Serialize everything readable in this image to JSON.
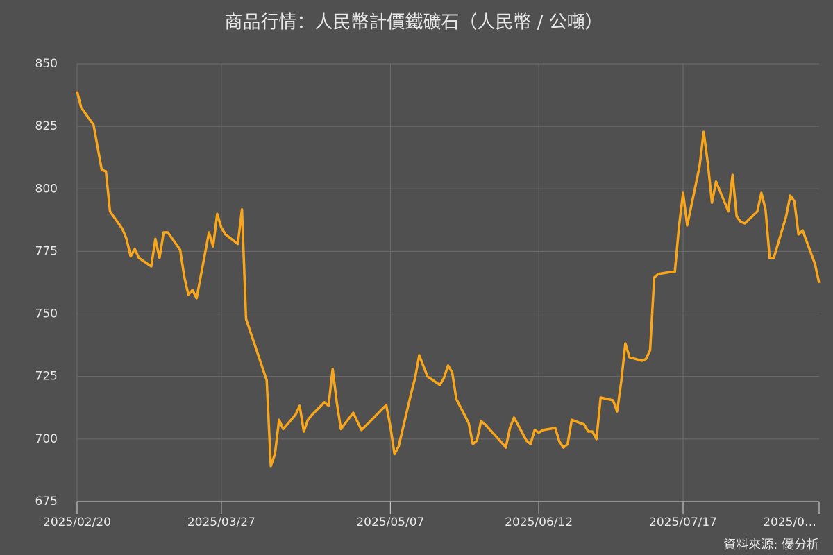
{
  "chart_data": {
    "type": "line",
    "title": "商品行情：人民幣計價鐵礦石（人民幣 / 公噸）",
    "source": "資料來源: 優分析",
    "x": [
      "2025/02/20",
      "2025/02/21",
      "2025/02/24",
      "2025/02/26",
      "2025/02/27",
      "2025/02/28",
      "2025/03/03",
      "2025/03/04",
      "2025/03/05",
      "2025/03/06",
      "2025/03/07",
      "2025/03/10",
      "2025/03/11",
      "2025/03/12",
      "2025/03/13",
      "2025/03/14",
      "2025/03/17",
      "2025/03/18",
      "2025/03/19",
      "2025/03/20",
      "2025/03/21",
      "2025/03/24",
      "2025/03/25",
      "2025/03/26",
      "2025/03/27",
      "2025/03/28",
      "2025/03/31",
      "2025/04/01",
      "2025/04/02",
      "2025/04/07",
      "2025/04/08",
      "2025/04/09",
      "2025/04/10",
      "2025/04/11",
      "2025/04/14",
      "2025/04/15",
      "2025/04/16",
      "2025/04/17",
      "2025/04/18",
      "2025/04/21",
      "2025/04/22",
      "2025/04/23",
      "2025/04/24",
      "2025/04/25",
      "2025/04/28",
      "2025/04/29",
      "2025/04/30",
      "2025/05/06",
      "2025/05/07",
      "2025/05/08",
      "2025/05/09",
      "2025/05/12",
      "2025/05/13",
      "2025/05/14",
      "2025/05/16",
      "2025/05/19",
      "2025/05/20",
      "2025/05/21",
      "2025/05/22",
      "2025/05/23",
      "2025/05/26",
      "2025/05/27",
      "2025/05/28",
      "2025/05/29",
      "2025/05/30",
      "2025/06/03",
      "2025/06/04",
      "2025/06/05",
      "2025/06/06",
      "2025/06/09",
      "2025/06/10",
      "2025/06/11",
      "2025/06/12",
      "2025/06/13",
      "2025/06/16",
      "2025/06/17",
      "2025/06/18",
      "2025/06/19",
      "2025/06/20",
      "2025/06/23",
      "2025/06/24",
      "2025/06/25",
      "2025/06/26",
      "2025/06/27",
      "2025/06/30",
      "2025/07/01",
      "2025/07/02",
      "2025/07/03",
      "2025/07/04",
      "2025/07/07",
      "2025/07/08",
      "2025/07/09",
      "2025/07/10",
      "2025/07/11",
      "2025/07/14",
      "2025/07/15",
      "2025/07/16",
      "2025/07/17",
      "2025/07/18",
      "2025/07/21",
      "2025/07/22",
      "2025/07/23",
      "2025/07/24",
      "2025/07/25",
      "2025/07/28",
      "2025/07/29",
      "2025/07/30",
      "2025/07/31",
      "2025/08/01",
      "2025/08/04",
      "2025/08/05",
      "2025/08/06",
      "2025/08/07",
      "2025/08/08",
      "2025/08/11",
      "2025/08/12",
      "2025/08/13",
      "2025/08/14",
      "2025/08/15",
      "2025/08/18",
      "2025/08/19"
    ],
    "series": [
      {
        "name": "人民幣計價鐵礦石",
        "color": "#f9a61a",
        "values": [
          839,
          832.5,
          825.6,
          807.6,
          807,
          791,
          784,
          780,
          773,
          776,
          772.4,
          769,
          780,
          772.4,
          782.6,
          782.6,
          775.7,
          765,
          757.7,
          759.6,
          756.3,
          782.6,
          777,
          790,
          784.5,
          781.8,
          778,
          791.8,
          748,
          723.5,
          689.2,
          694,
          707.7,
          704,
          709.7,
          713.3,
          703,
          707.7,
          709.7,
          714.7,
          713.3,
          728,
          714.7,
          704,
          710.5,
          707,
          703.6,
          713.6,
          705,
          694,
          697,
          718,
          724.4,
          733.5,
          725,
          721.6,
          724.4,
          729.4,
          726.6,
          716,
          706.4,
          698,
          699.4,
          707.2,
          705.8,
          698.6,
          696.6,
          704.4,
          708.6,
          699.4,
          698,
          703.6,
          702.5,
          703.6,
          704.4,
          699,
          696.6,
          698,
          707.7,
          705.8,
          703,
          703,
          700,
          716.6,
          715.5,
          711,
          723,
          738.2,
          732.7,
          731.3,
          732,
          735.5,
          764.6,
          766,
          766.8,
          766.8,
          784.8,
          798.4,
          785.4,
          809,
          822.8,
          810.3,
          794.5,
          802.9,
          791,
          805.6,
          789,
          786.8,
          786.2,
          791,
          798.4,
          791.8,
          772.4,
          772.4,
          789,
          797.3,
          795,
          781.8,
          783.4,
          770,
          762.4
        ]
      }
    ],
    "xlim": [
      "2025/02/20",
      "2025/08/19"
    ],
    "xticks": [
      "2025/02/20",
      "2025/03/27",
      "2025/05/07",
      "2025/06/12",
      "2025/07/17",
      {
        "value": "2025/08/21",
        "label": "2025/0…"
      }
    ],
    "ylim": [
      675,
      850
    ],
    "yticks": [
      675,
      700,
      725,
      750,
      775,
      800,
      825,
      850
    ],
    "grid": true
  }
}
